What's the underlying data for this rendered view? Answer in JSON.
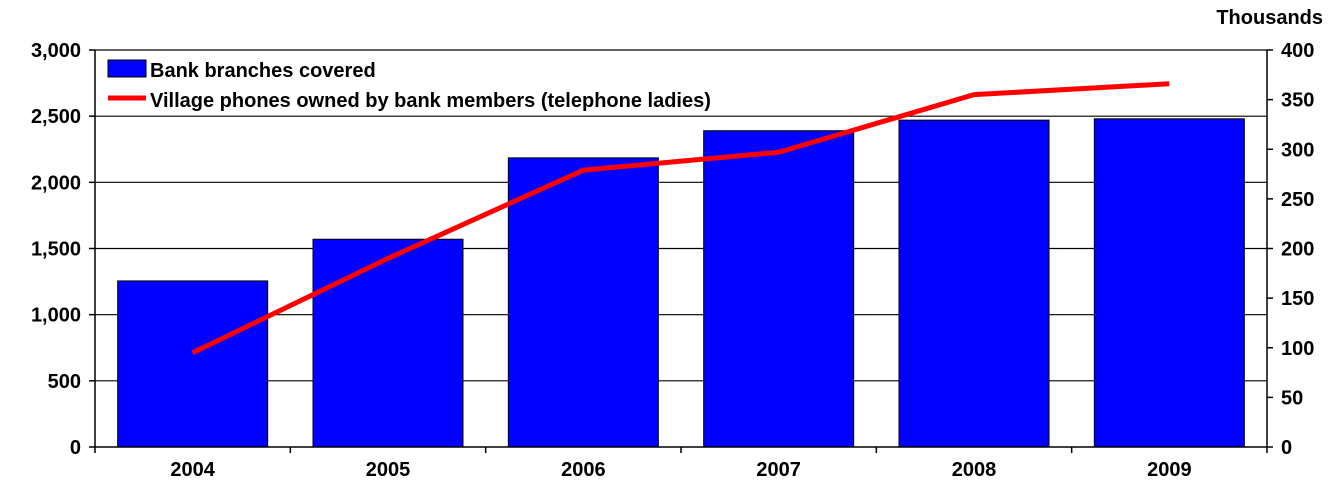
{
  "chart_data": {
    "type": "bar",
    "categories": [
      "2004",
      "2005",
      "2006",
      "2007",
      "2008",
      "2009"
    ],
    "series": [
      {
        "name": "Bank branches covered",
        "type": "bar",
        "axis": "left",
        "color": "#0000FF",
        "values": [
          1255,
          1570,
          2185,
          2390,
          2470,
          2480
        ]
      },
      {
        "name": "Village phones owned by bank members (telephone ladies)",
        "type": "line",
        "axis": "right",
        "color": "#FF0000",
        "values": [
          95,
          190,
          279,
          297,
          355,
          366
        ]
      }
    ],
    "y_left": {
      "min": 0,
      "max": 3000,
      "step": 500,
      "ticks": [
        "0",
        "500",
        "1,000",
        "1,500",
        "2,000",
        "2,500",
        "3,000"
      ]
    },
    "y_right": {
      "min": 0,
      "max": 400,
      "step": 50,
      "unit_label": "Thousands",
      "ticks": [
        "0",
        "50",
        "100",
        "150",
        "200",
        "250",
        "300",
        "350",
        "400"
      ]
    },
    "grid": true,
    "legend": "top-left"
  }
}
